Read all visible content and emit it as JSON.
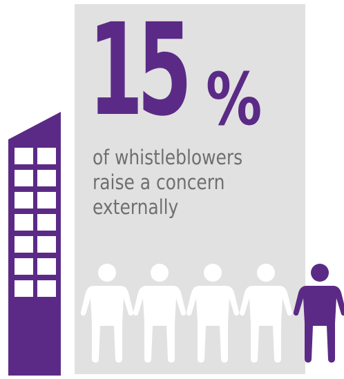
{
  "stat": {
    "number": "15",
    "percent_sign": "%",
    "caption_lines": [
      "of whistleblowers",
      "raise a concern",
      "externally"
    ]
  },
  "people": {
    "total": 5,
    "highlighted": 1
  },
  "colors": {
    "accent": "#5b2a86",
    "panel": "#e1e1e1",
    "caption_text": "#6f6f6f",
    "person_default": "#ffffff"
  },
  "icons": [
    "office-building-icon",
    "person-icon"
  ]
}
